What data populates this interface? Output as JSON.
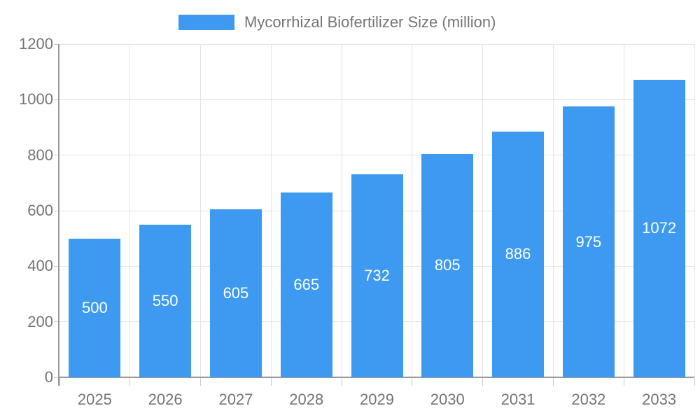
{
  "legend": {
    "label": "Mycorrhizal Biofertilizer Size (million)"
  },
  "colors": {
    "bar": "#3d9af0",
    "grid": "#e4e4e6",
    "axis": "#999999",
    "tick": "#c9c9c9",
    "axis_text": "#757575",
    "bar_label_text": "#ffffff"
  },
  "chart_data": {
    "type": "bar",
    "categories": [
      "2025",
      "2026",
      "2027",
      "2028",
      "2029",
      "2030",
      "2031",
      "2032",
      "2033"
    ],
    "series": [
      {
        "name": "Mycorrhizal Biofertilizer Size (million)",
        "values": [
          500,
          550,
          605,
          665,
          732,
          805,
          886,
          975,
          1072
        ]
      }
    ],
    "title": "",
    "xlabel": "",
    "ylabel": "",
    "ylim": [
      0,
      1200
    ],
    "yticks": [
      0,
      200,
      400,
      600,
      800,
      1000,
      1200
    ],
    "grid": true,
    "legend_position": "top",
    "bar_value_labels": true
  }
}
